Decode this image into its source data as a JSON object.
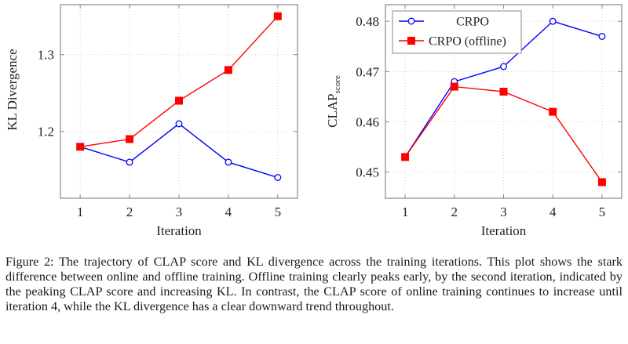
{
  "chart_data": [
    {
      "type": "line",
      "title": "",
      "xlabel": "Iteration",
      "ylabel": "KL Divergence",
      "x": [
        1,
        2,
        3,
        4,
        5
      ],
      "xticks": [
        "1",
        "2",
        "3",
        "4",
        "5"
      ],
      "yticks": [
        "1.2",
        "1.3"
      ],
      "ytick_values": [
        1.2,
        1.3
      ],
      "xlim": [
        0.6,
        5.4
      ],
      "ylim": [
        1.113,
        1.365
      ],
      "grid": true,
      "series": [
        {
          "name": "CRPO",
          "color": "#0000ff",
          "marker": "circle-open",
          "values": [
            1.18,
            1.16,
            1.21,
            1.16,
            1.14
          ]
        },
        {
          "name": "CRPO (offline)",
          "color": "#ff0000",
          "marker": "square-filled",
          "values": [
            1.18,
            1.19,
            1.24,
            1.28,
            1.35
          ]
        }
      ],
      "legend": null
    },
    {
      "type": "line",
      "title": "",
      "xlabel": "Iteration",
      "ylabel": "CLAP",
      "ylabel_subscript": "score",
      "x": [
        1,
        2,
        3,
        4,
        5
      ],
      "xticks": [
        "1",
        "2",
        "3",
        "4",
        "5"
      ],
      "yticks": [
        "0.45",
        "0.46",
        "0.47",
        "0.48"
      ],
      "ytick_values": [
        0.45,
        0.46,
        0.47,
        0.48
      ],
      "xlim": [
        0.6,
        5.4
      ],
      "ylim": [
        0.4448,
        0.4833
      ],
      "grid": true,
      "series": [
        {
          "name": "CRPO",
          "color": "#0000ff",
          "marker": "circle-open",
          "values": [
            0.453,
            0.468,
            0.471,
            0.48,
            0.477
          ]
        },
        {
          "name": "CRPO (offline)",
          "color": "#ff0000",
          "marker": "square-filled",
          "values": [
            0.453,
            0.467,
            0.466,
            0.462,
            0.448
          ]
        }
      ],
      "legend": "top-left"
    }
  ],
  "caption": "Figure 2: The trajectory of CLAP score and KL divergence across the training iterations. This plot shows the stark difference between online and offline training. Offline training clearly peaks early, by the second iteration, indicated by the peaking CLAP score and increasing KL. In contrast, the CLAP score of online training continues to increase until iteration 4, while the KL divergence has a clear downward trend throughout."
}
